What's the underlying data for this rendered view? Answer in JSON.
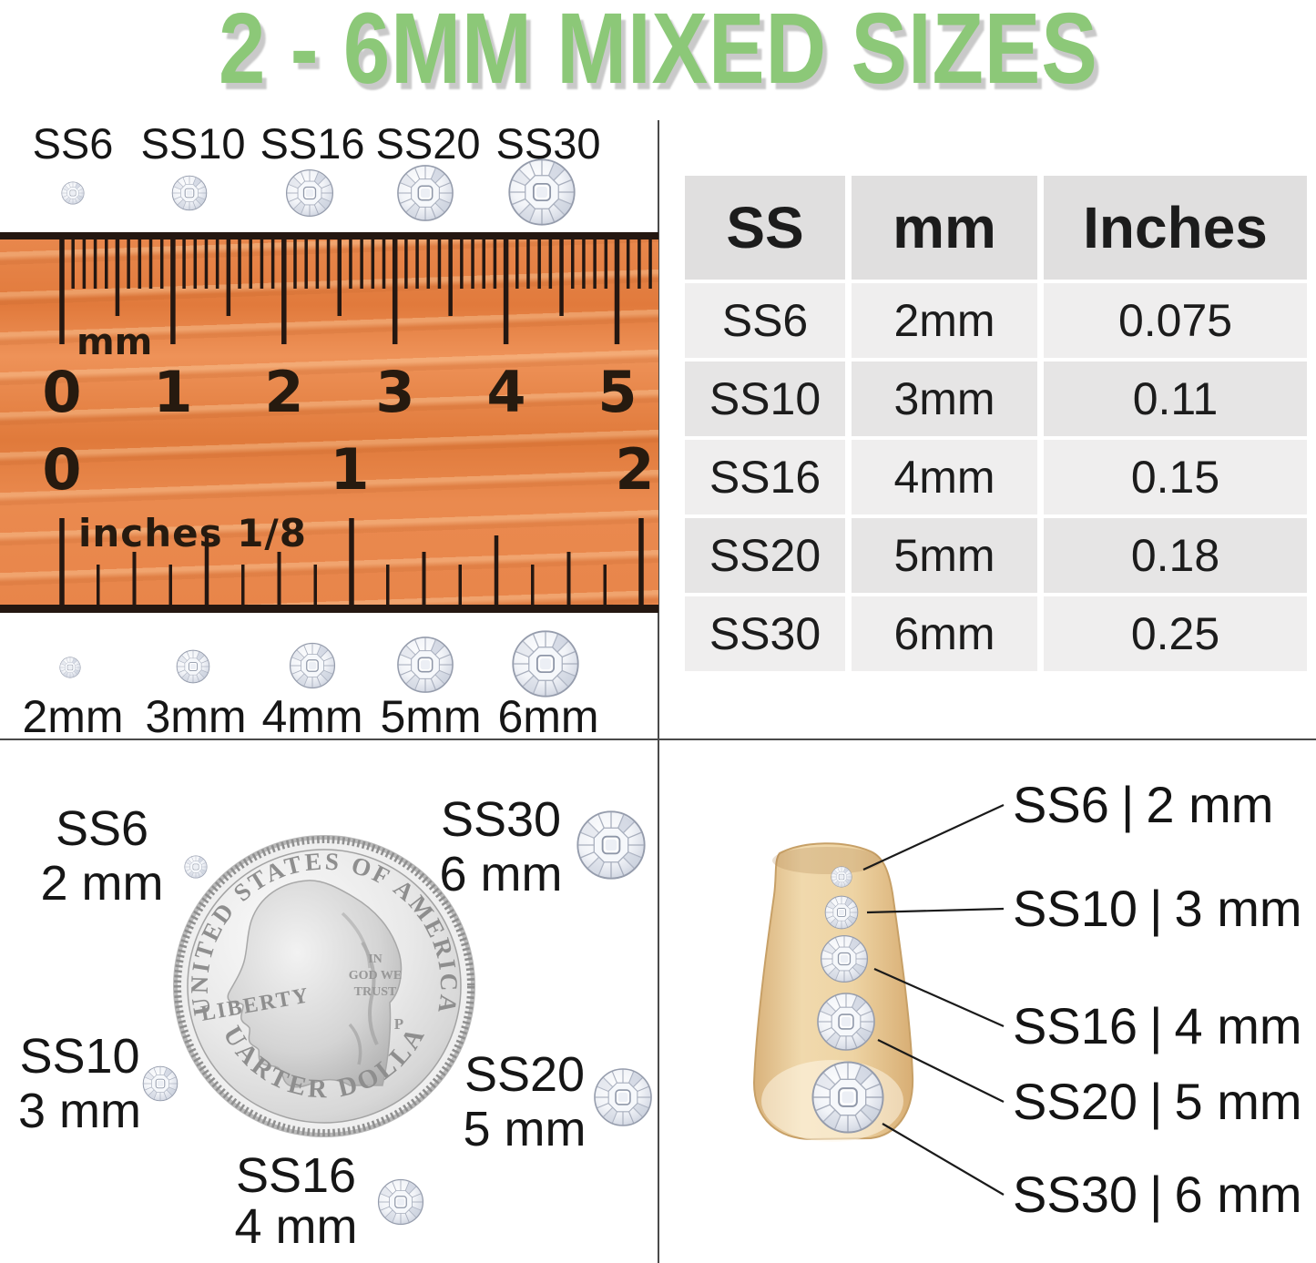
{
  "title": "2 - 6MM MIXED SIZES",
  "size_chart": {
    "ss_labels": [
      "SS6",
      "SS10",
      "SS16",
      "SS20",
      "SS30"
    ],
    "mm_labels": [
      "2mm",
      "3mm",
      "4mm",
      "5mm",
      "6mm"
    ]
  },
  "ruler": {
    "unit_top": "mm",
    "mm_numbers": [
      "0",
      "1",
      "2",
      "3",
      "4",
      "5"
    ],
    "inch_numbers": [
      "0",
      "1",
      "2"
    ],
    "unit_bottom": "inches 1/8"
  },
  "table": {
    "headers": [
      "SS",
      "mm",
      "Inches"
    ],
    "rows": [
      [
        "SS6",
        "2mm",
        "0.075"
      ],
      [
        "SS10",
        "3mm",
        "0.11"
      ],
      [
        "SS16",
        "4mm",
        "0.15"
      ],
      [
        "SS20",
        "5mm",
        "0.18"
      ],
      [
        "SS30",
        "6mm",
        "0.25"
      ]
    ]
  },
  "coin_section": {
    "labels": {
      "ss6": {
        "ss": "SS6",
        "mm": "2 mm"
      },
      "ss30": {
        "ss": "SS30",
        "mm": "6 mm"
      },
      "ss10": {
        "ss": "SS10",
        "mm": "3 mm"
      },
      "ss20": {
        "ss": "SS20",
        "mm": "5 mm"
      },
      "ss16": {
        "ss": "SS16",
        "mm": "4 mm"
      }
    },
    "coin": {
      "top_text": "UNITED STATES OF AMERICA",
      "left_text": "LIBERTY",
      "motto_line1": "IN",
      "motto_line2": "GOD WE",
      "motto_line3": "TRUST",
      "bottom_text": "QUARTER DOLLAR",
      "mint_mark": "P"
    }
  },
  "nail_section": {
    "separator": "|",
    "labels": [
      {
        "ss": "SS6",
        "mm": "2 mm"
      },
      {
        "ss": "SS10",
        "mm": "3 mm"
      },
      {
        "ss": "SS16",
        "mm": "4 mm"
      },
      {
        "ss": "SS20",
        "mm": "5 mm"
      },
      {
        "ss": "SS30",
        "mm": "6 mm"
      }
    ]
  },
  "colors": {
    "title_green": "#8cc878",
    "ruler_orange": "#e8854a",
    "table_header_gray": "#e0dfdf",
    "table_row_light": "#efeeee",
    "table_row_dark": "#e6e5e5",
    "nail_beige": "#eed3a7"
  }
}
